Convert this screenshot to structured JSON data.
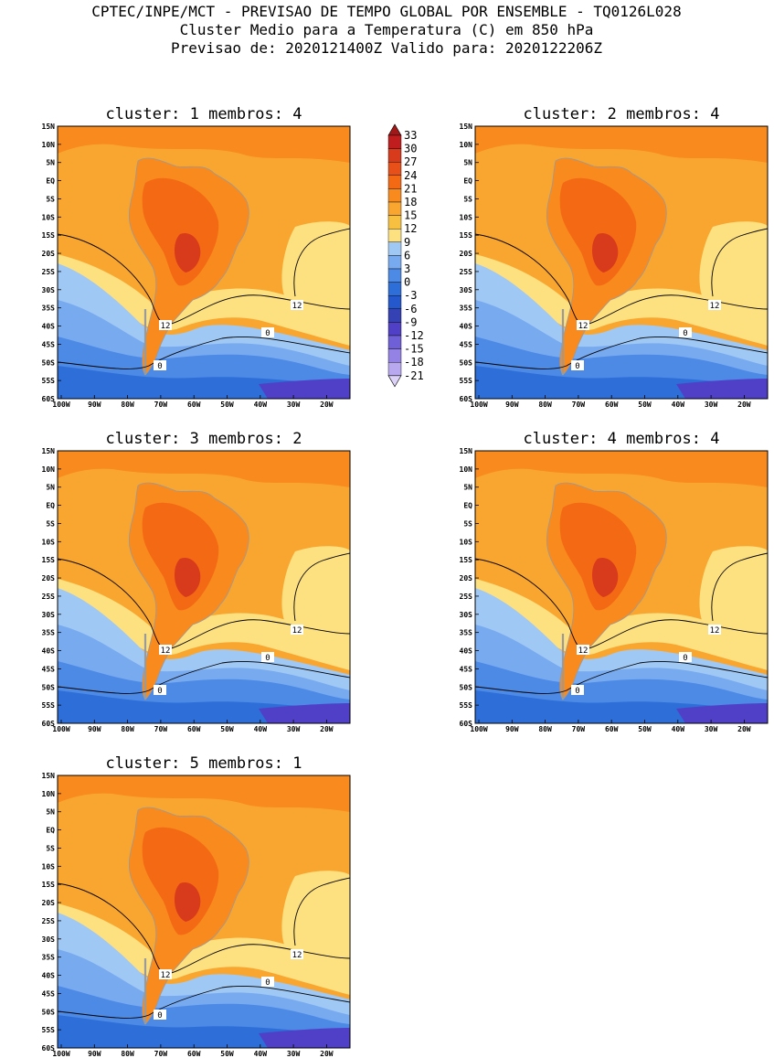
{
  "header": {
    "line1": "CPTEC/INPE/MCT - PREVISAO DE TEMPO GLOBAL POR ENSEMBLE - TQ0126L028",
    "line2": "Cluster Medio para a Temperatura (C) em 850 hPa",
    "line3": "Previsao de: 2020121400Z   Valido para: 2020122206Z"
  },
  "lat_labels": [
    "15N",
    "10N",
    "5N",
    "EQ",
    "5S",
    "10S",
    "15S",
    "20S",
    "25S",
    "30S",
    "35S",
    "40S",
    "45S",
    "50S",
    "55S",
    "60S"
  ],
  "lon_labels": [
    "100W",
    "90W",
    "80W",
    "70W",
    "60W",
    "50W",
    "40W",
    "30W",
    "20W"
  ],
  "colorbar": {
    "labels": [
      "33",
      "30",
      "27",
      "24",
      "21",
      "18",
      "15",
      "12",
      "9",
      "6",
      "3",
      "0",
      "-3",
      "-6",
      "-9",
      "-12",
      "-15",
      "-18",
      "-21"
    ],
    "colors": [
      "#a01818",
      "#c01e1e",
      "#d83a1c",
      "#e8501a",
      "#f46a14",
      "#f88a1e",
      "#f9a630",
      "#f8c040",
      "#fde080",
      "#a0c8f5",
      "#78aaf0",
      "#4c8ae6",
      "#2e6ed8",
      "#2458cc",
      "#3442b4",
      "#5040c8",
      "#7060d8",
      "#9482e4",
      "#b8a8f0",
      "#dcd2f8"
    ]
  },
  "panels": [
    {
      "title": "cluster: 1   membros: 4",
      "contour_labels": [
        "12",
        "12",
        "0",
        "0"
      ]
    },
    {
      "title": "cluster: 2   membros: 4",
      "contour_labels": [
        "12",
        "12",
        "0",
        "0"
      ]
    },
    {
      "title": "cluster: 3   membros: 2",
      "contour_labels": [
        "12",
        "12",
        "0",
        "0"
      ]
    },
    {
      "title": "cluster: 4   membros: 4",
      "contour_labels": [
        "12",
        "12",
        "0",
        "0"
      ]
    },
    {
      "title": "cluster: 5   membros: 1",
      "contour_labels": [
        "12",
        "12",
        "0",
        "0"
      ]
    }
  ]
}
